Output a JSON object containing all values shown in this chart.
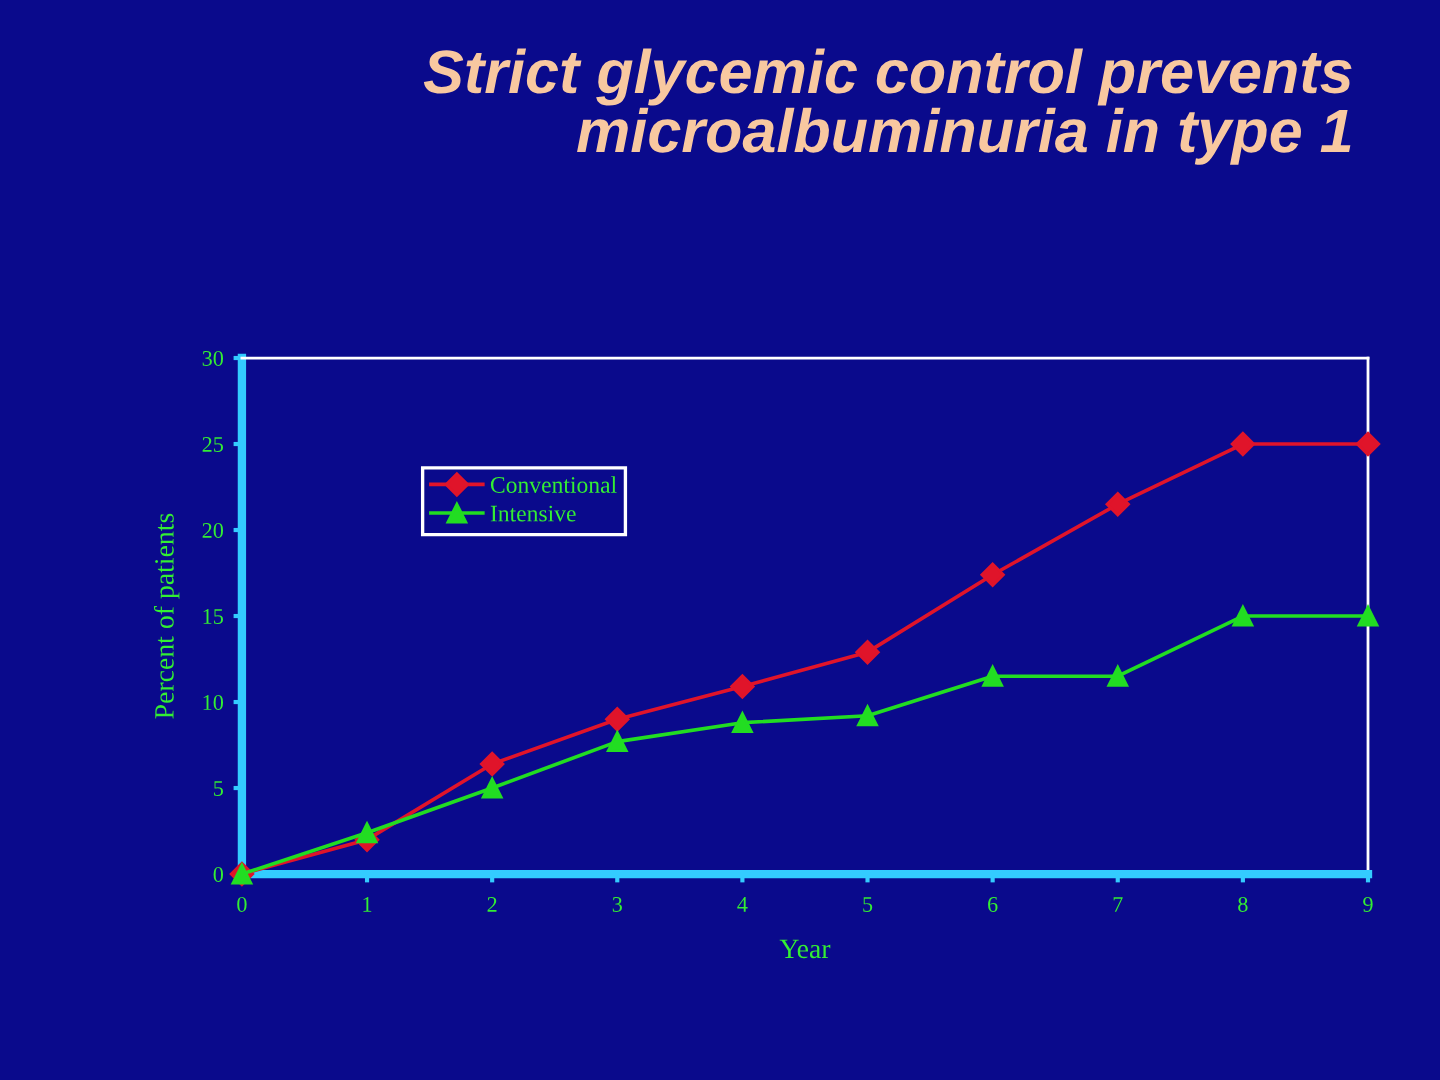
{
  "chart_data": {
    "type": "line",
    "title": "Strict glycemic control prevents\nmicroalbuminuria in type 1",
    "xlabel": "Year",
    "ylabel": "Percent of patients",
    "x": [
      0,
      1,
      2,
      3,
      4,
      5,
      6,
      7,
      8,
      9
    ],
    "series": [
      {
        "name": "Conventional",
        "color": "#e0142a",
        "marker": "diamond",
        "values": [
          0,
          2,
          6.4,
          9,
          10.9,
          12.9,
          17.4,
          21.5,
          25,
          25
        ]
      },
      {
        "name": "Intensive",
        "color": "#22dd22",
        "marker": "triangle",
        "values": [
          0,
          2.4,
          5,
          7.7,
          8.8,
          9.2,
          11.5,
          11.5,
          15,
          15
        ]
      }
    ],
    "xlim": [
      0,
      9
    ],
    "xticks": [
      0,
      1,
      2,
      3,
      4,
      5,
      6,
      7,
      8,
      9
    ],
    "ylim": [
      0,
      30
    ],
    "yticks": [
      0,
      5,
      10,
      15,
      20,
      25,
      30
    ],
    "grid": false,
    "legend": "top left",
    "line_style": "solid"
  }
}
